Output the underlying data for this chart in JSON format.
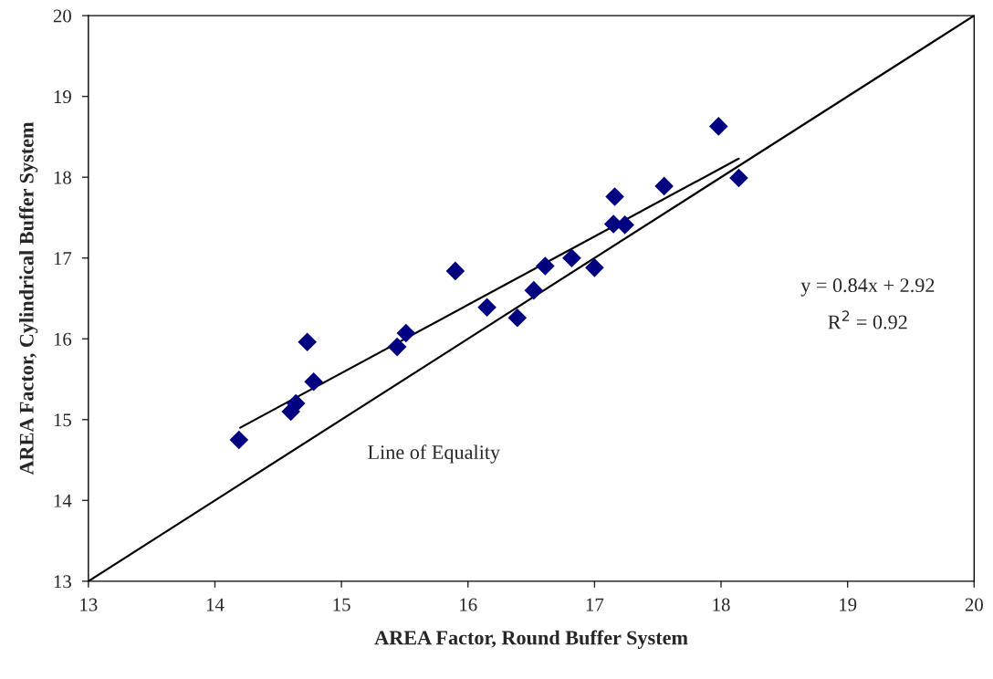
{
  "chart_data": {
    "type": "scatter",
    "xlabel": "AREA Factor, Round Buffer System",
    "ylabel": "AREA Factor, Cylindrical Buffer System",
    "xlim": [
      13,
      20
    ],
    "ylim": [
      13,
      20
    ],
    "xticks": [
      13,
      14,
      15,
      16,
      17,
      18,
      19,
      20
    ],
    "yticks": [
      13,
      14,
      15,
      16,
      17,
      18,
      19,
      20
    ],
    "grid": false,
    "series": [
      {
        "color": "#000080",
        "marker": "diamond",
        "x": [
          14.19,
          14.6,
          14.64,
          14.73,
          14.78,
          15.44,
          15.51,
          15.9,
          16.15,
          16.39,
          16.52,
          16.61,
          16.82,
          17.0,
          17.15,
          17.16,
          17.24,
          17.55,
          17.98,
          18.14
        ],
        "values": [
          14.75,
          15.1,
          15.2,
          15.96,
          15.47,
          15.9,
          16.07,
          16.84,
          16.39,
          16.26,
          16.6,
          16.9,
          17.0,
          16.88,
          17.42,
          17.76,
          17.41,
          17.89,
          18.63,
          17.99
        ]
      },
      {
        "type": "line",
        "color": "#000000",
        "marker": "none",
        "line_style": "solid",
        "x": [
          14.2,
          18.14
        ],
        "values": [
          14.9,
          18.23
        ]
      },
      {
        "type": "line",
        "color": "#000000",
        "marker": "none",
        "line_style": "solid",
        "x": [
          13,
          20
        ],
        "values": [
          13,
          20
        ]
      }
    ],
    "annotations": [
      "Line of Equality",
      "y = 0.84x + 2.92",
      "R$^{2}$ = 0.92"
    ]
  }
}
